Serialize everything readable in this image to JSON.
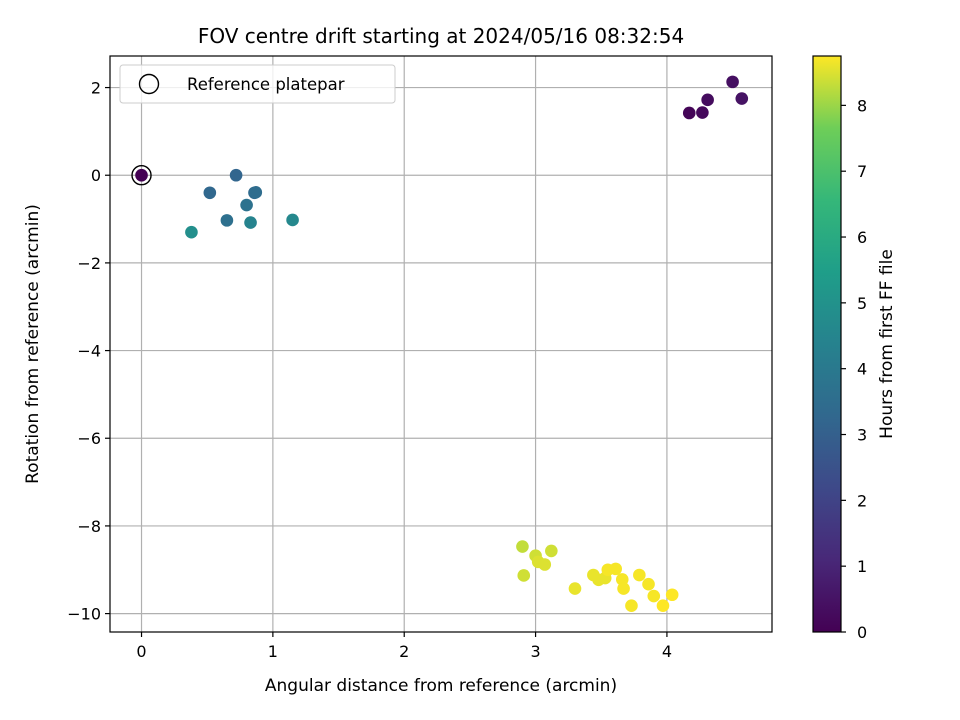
{
  "chart_data": {
    "type": "scatter",
    "title": "FOV centre drift starting at 2024/05/16 08:32:54",
    "xlabel": "Angular distance from reference (arcmin)",
    "ylabel": "Rotation from reference (arcmin)",
    "xlim": [
      -0.24,
      4.8
    ],
    "ylim": [
      -10.42,
      2.72
    ],
    "xticks": [
      0,
      1,
      2,
      3,
      4
    ],
    "yticks": [
      2,
      0,
      -2,
      -4,
      -6,
      -8,
      -10
    ],
    "xtick_labels": [
      "0",
      "1",
      "2",
      "3",
      "4"
    ],
    "ytick_labels": [
      "2",
      "0",
      "−2",
      "−4",
      "−6",
      "−8",
      "−10"
    ],
    "grid": true,
    "legend": {
      "placement": "top-left",
      "entries": [
        "Reference platepar"
      ]
    },
    "reference_point": {
      "x": 0,
      "y": 0
    },
    "colorbar": {
      "label": "Hours from first FF file",
      "min": 0,
      "max": 8.75,
      "ticks": [
        0,
        1,
        2,
        3,
        4,
        5,
        6,
        7,
        8
      ],
      "tick_labels": [
        "0",
        "1",
        "2",
        "3",
        "4",
        "5",
        "6",
        "7",
        "8"
      ],
      "colormap": "viridis"
    },
    "series": [
      {
        "points": [
          {
            "x": 0.0,
            "y": 0.0,
            "h": 0.0
          },
          {
            "x": 4.17,
            "y": 1.42,
            "h": 0.1
          },
          {
            "x": 4.27,
            "y": 1.43,
            "h": 0.2
          },
          {
            "x": 4.31,
            "y": 1.72,
            "h": 0.3
          },
          {
            "x": 4.5,
            "y": 2.13,
            "h": 0.4
          },
          {
            "x": 4.57,
            "y": 1.75,
            "h": 0.5
          },
          {
            "x": 0.52,
            "y": -0.4,
            "h": 3.3
          },
          {
            "x": 0.72,
            "y": 0.0,
            "h": 3.2
          },
          {
            "x": 0.86,
            "y": -0.4,
            "h": 3.4
          },
          {
            "x": 0.87,
            "y": -0.39,
            "h": 3.5
          },
          {
            "x": 0.65,
            "y": -1.03,
            "h": 3.6
          },
          {
            "x": 0.8,
            "y": -0.68,
            "h": 3.7
          },
          {
            "x": 0.83,
            "y": -1.08,
            "h": 4.4
          },
          {
            "x": 1.15,
            "y": -1.02,
            "h": 4.6
          },
          {
            "x": 0.38,
            "y": -1.3,
            "h": 4.9
          },
          {
            "x": 2.9,
            "y": -8.47,
            "h": 8.3
          },
          {
            "x": 2.91,
            "y": -9.13,
            "h": 8.4
          },
          {
            "x": 3.0,
            "y": -8.68,
            "h": 8.4
          },
          {
            "x": 3.02,
            "y": -8.82,
            "h": 8.5
          },
          {
            "x": 3.07,
            "y": -8.88,
            "h": 8.5
          },
          {
            "x": 3.12,
            "y": -8.57,
            "h": 8.4
          },
          {
            "x": 3.3,
            "y": -9.43,
            "h": 8.6
          },
          {
            "x": 3.44,
            "y": -9.12,
            "h": 8.6
          },
          {
            "x": 3.48,
            "y": -9.23,
            "h": 8.6
          },
          {
            "x": 3.53,
            "y": -9.19,
            "h": 8.6
          },
          {
            "x": 3.55,
            "y": -9.0,
            "h": 8.7
          },
          {
            "x": 3.61,
            "y": -8.98,
            "h": 8.7
          },
          {
            "x": 3.66,
            "y": -9.22,
            "h": 8.7
          },
          {
            "x": 3.67,
            "y": -9.43,
            "h": 8.7
          },
          {
            "x": 3.73,
            "y": -9.82,
            "h": 8.7
          },
          {
            "x": 3.79,
            "y": -9.12,
            "h": 8.7
          },
          {
            "x": 3.86,
            "y": -9.33,
            "h": 8.7
          },
          {
            "x": 3.9,
            "y": -9.6,
            "h": 8.7
          },
          {
            "x": 3.97,
            "y": -9.82,
            "h": 8.75
          },
          {
            "x": 4.04,
            "y": -9.57,
            "h": 8.75
          }
        ]
      }
    ]
  }
}
